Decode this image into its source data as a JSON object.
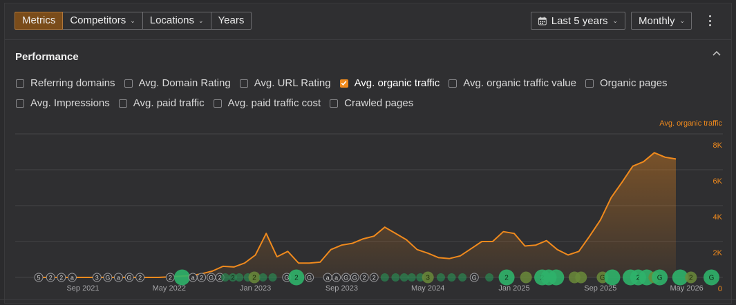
{
  "toolbar": {
    "tabs": [
      {
        "label": "Metrics",
        "active": true,
        "dropdown": false
      },
      {
        "label": "Competitors",
        "active": false,
        "dropdown": true
      },
      {
        "label": "Locations",
        "active": false,
        "dropdown": true
      },
      {
        "label": "Years",
        "active": false,
        "dropdown": false
      }
    ],
    "range_label": "Last 5 years",
    "interval_label": "Monthly",
    "icons": {
      "range": "calendar-icon",
      "more": "kebab-menu-icon",
      "dropdown": "chevron-down-icon"
    }
  },
  "panel": {
    "title": "Performance",
    "collapse_icon": "chevron-up-icon",
    "metrics": [
      [
        {
          "label": "Referring domains",
          "checked": false
        },
        {
          "label": "Avg. Domain Rating",
          "checked": false
        },
        {
          "label": "Avg. URL Rating",
          "checked": false
        },
        {
          "label": "Avg. organic traffic",
          "checked": true
        },
        {
          "label": "Avg. organic traffic value",
          "checked": false
        },
        {
          "label": "Organic pages",
          "checked": false
        }
      ],
      [
        {
          "label": "Avg. Impressions",
          "checked": false
        },
        {
          "label": "Avg. paid traffic",
          "checked": false
        },
        {
          "label": "Avg. paid traffic cost",
          "checked": false
        },
        {
          "label": "Crawled pages",
          "checked": false
        }
      ]
    ]
  },
  "colors": {
    "accent": "#f08a1d",
    "grid": "#454548",
    "marker_green": "#2fb36a",
    "marker_olive": "#6a8a3a"
  },
  "chart_data": {
    "type": "area",
    "series": [
      {
        "name": "Avg. organic traffic",
        "color": "#f08a1d"
      }
    ],
    "ylabel": "Avg. organic traffic",
    "ylim": [
      0,
      8000
    ],
    "y_ticks": [
      "0",
      "2K",
      "4K",
      "6K",
      "8K"
    ],
    "x_ticks": [
      "Sep 2021",
      "May 2022",
      "Jan 2023",
      "Sep 2023",
      "May 2024",
      "Jan 2025",
      "Sep 2025",
      "May 2026"
    ],
    "x_tick_months": [
      0,
      8,
      16,
      24,
      32,
      40,
      48,
      56
    ],
    "points": [
      {
        "m": -4,
        "v": 0
      },
      {
        "m": 7,
        "v": 0
      },
      {
        "m": 8,
        "v": 30
      },
      {
        "m": 10,
        "v": 100
      },
      {
        "m": 11,
        "v": 200
      },
      {
        "m": 12,
        "v": 350
      },
      {
        "m": 13,
        "v": 620
      },
      {
        "m": 14,
        "v": 580
      },
      {
        "m": 15,
        "v": 800
      },
      {
        "m": 16,
        "v": 1250
      },
      {
        "m": 17,
        "v": 2450
      },
      {
        "m": 18,
        "v": 1150
      },
      {
        "m": 19,
        "v": 1450
      },
      {
        "m": 20,
        "v": 800
      },
      {
        "m": 21,
        "v": 800
      },
      {
        "m": 22,
        "v": 850
      },
      {
        "m": 23,
        "v": 1550
      },
      {
        "m": 24,
        "v": 1800
      },
      {
        "m": 25,
        "v": 1900
      },
      {
        "m": 26,
        "v": 2150
      },
      {
        "m": 27,
        "v": 2300
      },
      {
        "m": 28,
        "v": 2800
      },
      {
        "m": 29,
        "v": 2450
      },
      {
        "m": 30,
        "v": 2100
      },
      {
        "m": 31,
        "v": 1550
      },
      {
        "m": 32,
        "v": 1350
      },
      {
        "m": 33,
        "v": 1100
      },
      {
        "m": 34,
        "v": 1050
      },
      {
        "m": 35,
        "v": 1200
      },
      {
        "m": 36,
        "v": 1600
      },
      {
        "m": 37,
        "v": 2000
      },
      {
        "m": 38,
        "v": 2000
      },
      {
        "m": 39,
        "v": 2550
      },
      {
        "m": 40,
        "v": 2450
      },
      {
        "m": 41,
        "v": 1750
      },
      {
        "m": 42,
        "v": 1800
      },
      {
        "m": 43,
        "v": 2050
      },
      {
        "m": 44,
        "v": 1550
      },
      {
        "m": 45,
        "v": 1250
      },
      {
        "m": 46,
        "v": 1450
      },
      {
        "m": 47,
        "v": 2300
      },
      {
        "m": 48,
        "v": 3200
      },
      {
        "m": 49,
        "v": 4450
      },
      {
        "m": 50,
        "v": 5300
      },
      {
        "m": 51,
        "v": 6200
      },
      {
        "m": 52,
        "v": 6450
      },
      {
        "m": 53,
        "v": 6950
      },
      {
        "m": 54,
        "v": 6700
      },
      {
        "m": 55,
        "v": 6600
      }
    ],
    "annotations": [
      {
        "m": -4.1,
        "label": "5",
        "kind": "outline"
      },
      {
        "m": -3.0,
        "label": "2",
        "kind": "outline"
      },
      {
        "m": -2.0,
        "label": "2",
        "kind": "outline"
      },
      {
        "m": -1.0,
        "label": "a",
        "kind": "outline"
      },
      {
        "m": 1.3,
        "label": "3",
        "kind": "outline"
      },
      {
        "m": 2.3,
        "label": "G",
        "kind": "outline"
      },
      {
        "m": 3.3,
        "label": "a",
        "kind": "outline"
      },
      {
        "m": 4.3,
        "label": "G",
        "kind": "outline"
      },
      {
        "m": 5.3,
        "label": "2",
        "kind": "outline"
      },
      {
        "m": 8.1,
        "label": "2",
        "kind": "outline"
      },
      {
        "m": 9.2,
        "label": "",
        "kind": "big"
      },
      {
        "m": 10.2,
        "label": "a",
        "kind": "outline"
      },
      {
        "m": 11.0,
        "label": "2",
        "kind": "outline"
      },
      {
        "m": 11.9,
        "label": "G",
        "kind": "outline"
      },
      {
        "m": 12.7,
        "label": "2",
        "kind": "outline"
      },
      {
        "m": 13.2,
        "label": "",
        "kind": "small"
      },
      {
        "m": 13.9,
        "label": "2",
        "kind": "small"
      },
      {
        "m": 14.5,
        "label": "",
        "kind": "small"
      },
      {
        "m": 15.3,
        "label": "",
        "kind": "small"
      },
      {
        "m": 15.9,
        "label": "2",
        "kind": "medium"
      },
      {
        "m": 16.7,
        "label": "",
        "kind": "small"
      },
      {
        "m": 17.6,
        "label": "",
        "kind": "small"
      },
      {
        "m": 18.9,
        "label": "G",
        "kind": "outline"
      },
      {
        "m": 19.8,
        "label": "2",
        "kind": "big"
      },
      {
        "m": 21.0,
        "label": "G",
        "kind": "outline"
      },
      {
        "m": 22.7,
        "label": "a",
        "kind": "outline"
      },
      {
        "m": 23.5,
        "label": "a",
        "kind": "outline"
      },
      {
        "m": 24.4,
        "label": "G",
        "kind": "outline"
      },
      {
        "m": 25.2,
        "label": "G",
        "kind": "outline"
      },
      {
        "m": 26.1,
        "label": "2",
        "kind": "outline"
      },
      {
        "m": 27.0,
        "label": "2",
        "kind": "outline"
      },
      {
        "m": 28.0,
        "label": "",
        "kind": "small"
      },
      {
        "m": 29.0,
        "label": "",
        "kind": "small"
      },
      {
        "m": 29.8,
        "label": "",
        "kind": "small"
      },
      {
        "m": 30.5,
        "label": "",
        "kind": "small"
      },
      {
        "m": 31.3,
        "label": "",
        "kind": "small"
      },
      {
        "m": 32.0,
        "label": "3",
        "kind": "medium"
      },
      {
        "m": 33.2,
        "label": "",
        "kind": "small"
      },
      {
        "m": 34.2,
        "label": "",
        "kind": "small"
      },
      {
        "m": 35.2,
        "label": "",
        "kind": "small"
      },
      {
        "m": 36.3,
        "label": "G",
        "kind": "outline"
      },
      {
        "m": 37.7,
        "label": "",
        "kind": "small"
      },
      {
        "m": 39.3,
        "label": "2",
        "kind": "big"
      },
      {
        "m": 41.1,
        "label": "",
        "kind": "medium"
      },
      {
        "m": 42.6,
        "label": "2",
        "kind": "big"
      },
      {
        "m": 43.2,
        "label": "",
        "kind": "big"
      },
      {
        "m": 43.9,
        "label": "",
        "kind": "big"
      },
      {
        "m": 45.6,
        "label": "",
        "kind": "medium"
      },
      {
        "m": 46.2,
        "label": "",
        "kind": "medium"
      },
      {
        "m": 48.2,
        "label": "G",
        "kind": "medium"
      },
      {
        "m": 49.1,
        "label": "",
        "kind": "big"
      },
      {
        "m": 50.8,
        "label": "",
        "kind": "big"
      },
      {
        "m": 51.5,
        "label": "2",
        "kind": "big"
      },
      {
        "m": 52.3,
        "label": "",
        "kind": "big"
      },
      {
        "m": 53.0,
        "label": "",
        "kind": "medium"
      },
      {
        "m": 53.5,
        "label": "G",
        "kind": "big"
      },
      {
        "m": 55.4,
        "label": "",
        "kind": "big"
      },
      {
        "m": 56.4,
        "label": "2",
        "kind": "medium"
      },
      {
        "m": 58.3,
        "label": "G",
        "kind": "big"
      }
    ]
  }
}
